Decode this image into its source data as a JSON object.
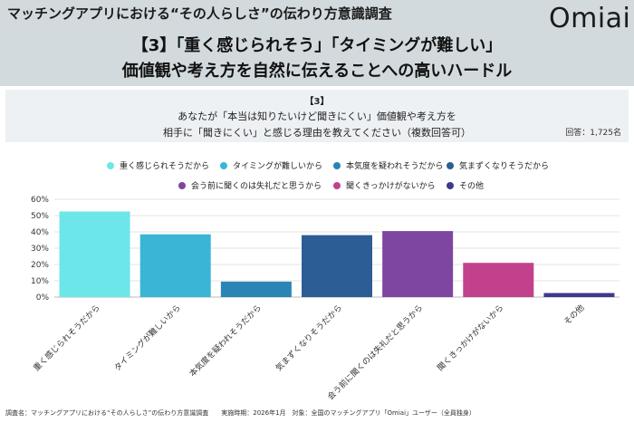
{
  "header": {
    "top_title": "マッチングアプリにおける“その人らしさ”の伝わり方意識調査",
    "logo": "Omiai",
    "headline_line1": "【3】「重く感じられそう」「タイミングが難しい」",
    "headline_line2": "価値観や考え方を自然に伝えることへの高いハードル"
  },
  "question": {
    "number": "【3】",
    "line1": "あなたが「本当は知りたいけど聞きにくい」価値観や考え方を",
    "line2": "相手に「聞きにくい」と感じる理由を教えてください（複数回答可）",
    "respondents": "回答：1,725名"
  },
  "footer": {
    "text": "調査名：マッチングアプリにおける“その人らしさ”の伝わり方意識調査　　実施時期：2026年1月　対象：全国のマッチングアプリ「Omiai」ユーザー（全員独身）"
  },
  "chart_data": {
    "type": "bar",
    "categories": [
      "重く感じられそうだから",
      "タイミングが難しいから",
      "本気度を疑われそうだから",
      "気まずくなりそうだから",
      "会う前に聞くのは失礼だと思うから",
      "聞くきっかけがないから",
      "その他"
    ],
    "values": [
      52.5,
      38.5,
      9.5,
      38,
      40.5,
      21,
      2.5
    ],
    "colors": [
      "#6de6ea",
      "#3ab5d6",
      "#2a85b6",
      "#2c5d94",
      "#7e46a0",
      "#c2418d",
      "#3d3b8a"
    ],
    "ylim": [
      0,
      60
    ],
    "yticks": [
      "0%",
      "10%",
      "20%",
      "30%",
      "40%",
      "50%",
      "60%"
    ],
    "grid": true,
    "legend_position": "top"
  }
}
